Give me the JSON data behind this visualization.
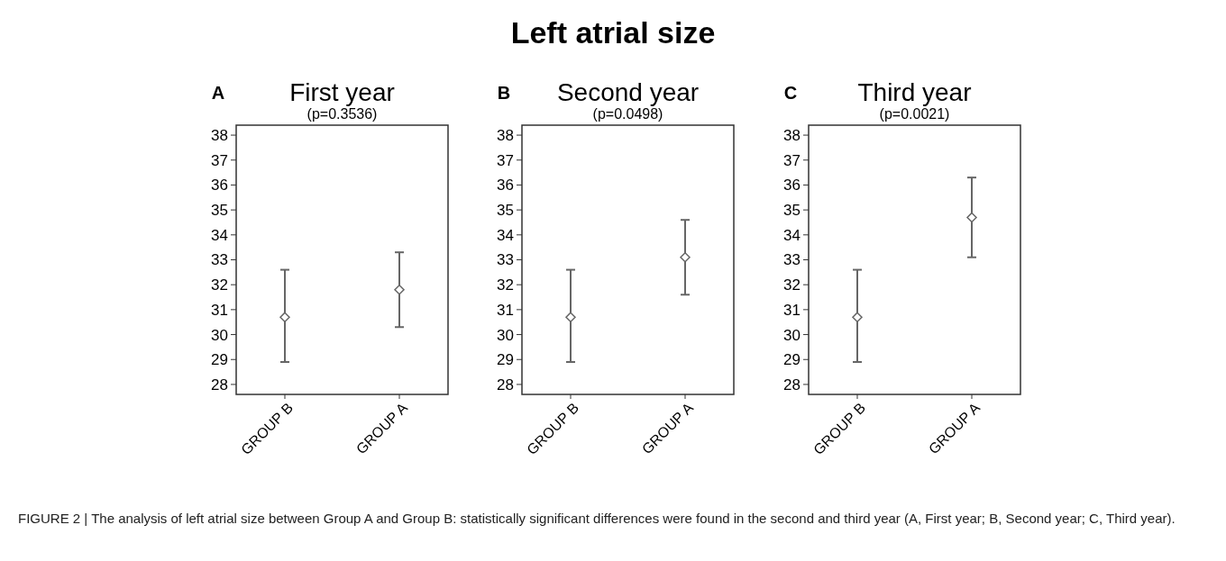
{
  "chart_data": [
    {
      "type": "scatter",
      "title": "First year",
      "subtitle": "(p=0.3536)",
      "annotations": [
        "A",
        "Left atrial size",
        "FIGURE 2 | The analysis of left atrial size between Group A and Group B: statistically significant differences were found in the second and third year (A, First year; B, Second year; C, Third year)."
      ],
      "categories": [
        "GROUP B",
        "GROUP A"
      ],
      "series": [
        {
          "color": "#666666",
          "values": [
            30.7,
            31.8
          ],
          "errors": [
            [
              28.9,
              32.6
            ],
            [
              30.3,
              33.3
            ]
          ]
        }
      ],
      "marker": "diamond",
      "ylim": [
        27.6,
        38.4
      ],
      "yticks": [
        28,
        29,
        30,
        31,
        32,
        33,
        34,
        35,
        36,
        37,
        38
      ]
    },
    {
      "type": "scatter",
      "title": "Second year",
      "subtitle": "(p=0.0498)",
      "annotations": [
        "B"
      ],
      "categories": [
        "GROUP B",
        "GROUP A"
      ],
      "series": [
        {
          "color": "#666666",
          "values": [
            30.7,
            33.1
          ],
          "errors": [
            [
              28.9,
              32.6
            ],
            [
              31.6,
              34.6
            ]
          ]
        }
      ],
      "marker": "diamond",
      "ylim": [
        27.6,
        38.4
      ],
      "yticks": [
        28,
        29,
        30,
        31,
        32,
        33,
        34,
        35,
        36,
        37,
        38
      ]
    },
    {
      "type": "scatter",
      "title": "Third year",
      "subtitle": "(p=0.0021)",
      "annotations": [
        "C"
      ],
      "categories": [
        "GROUP B",
        "GROUP A"
      ],
      "series": [
        {
          "color": "#666666",
          "values": [
            30.7,
            34.7
          ],
          "errors": [
            [
              28.9,
              32.6
            ],
            [
              33.1,
              36.3
            ]
          ]
        }
      ],
      "marker": "diamond",
      "ylim": [
        27.6,
        38.4
      ],
      "yticks": [
        28,
        29,
        30,
        31,
        32,
        33,
        34,
        35,
        36,
        37,
        38
      ]
    }
  ]
}
